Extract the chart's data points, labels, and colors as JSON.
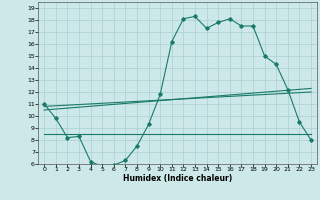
{
  "title": "",
  "xlabel": "Humidex (Indice chaleur)",
  "background_color": "#cce8e8",
  "grid_color": "#aacfcf",
  "line_color": "#1a7a6a",
  "xlim": [
    -0.5,
    23.5
  ],
  "ylim": [
    6,
    19.5
  ],
  "xticks": [
    0,
    1,
    2,
    3,
    4,
    5,
    6,
    7,
    8,
    9,
    10,
    11,
    12,
    13,
    14,
    15,
    16,
    17,
    18,
    19,
    20,
    21,
    22,
    23
  ],
  "yticks": [
    6,
    7,
    8,
    9,
    10,
    11,
    12,
    13,
    14,
    15,
    16,
    17,
    18,
    19
  ],
  "line1_x": [
    0,
    1,
    2,
    3,
    4,
    5,
    6,
    7,
    8,
    9,
    10,
    11,
    12,
    13,
    14,
    15,
    16,
    17,
    18,
    19,
    20,
    21,
    22,
    23
  ],
  "line1_y": [
    11.0,
    9.8,
    8.2,
    8.3,
    6.2,
    5.8,
    5.9,
    6.3,
    7.5,
    9.3,
    11.8,
    16.2,
    18.1,
    18.3,
    17.3,
    17.8,
    18.1,
    17.5,
    17.5,
    15.0,
    14.3,
    12.2,
    9.5,
    8.0
  ],
  "line2_x": [
    0,
    23
  ],
  "line2_y": [
    8.5,
    8.5
  ],
  "line3_x": [
    0,
    23
  ],
  "line3_y": [
    10.5,
    12.3
  ],
  "line4_x": [
    0,
    23
  ],
  "line4_y": [
    10.8,
    12.0
  ]
}
